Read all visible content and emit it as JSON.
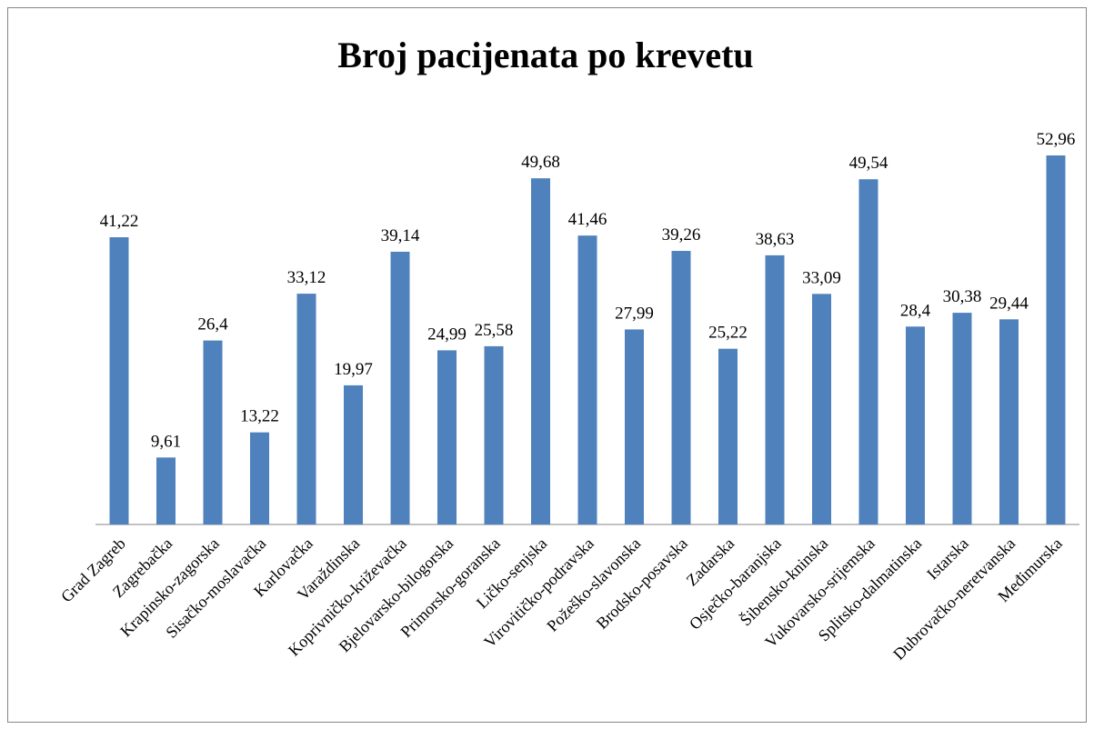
{
  "chart_data": {
    "type": "bar",
    "title": "Broj pacijenata po krevetu",
    "categories": [
      "Grad Zagreb",
      "Zagrebačka",
      "Krapinsko-zagorska",
      "Sisačko-moslavačka",
      "Karlovačka",
      "Varaždinska",
      "Koprivničko-križevačka",
      "Bjelovarsko-bilogorska",
      "Primorsko-goranska",
      "Ličko-senjska",
      "Virovitičko-podravska",
      "Požeško-slavonska",
      "Brodsko-posavska",
      "Zadarska",
      "Osječko-baranjska",
      "Šibensko-kninska",
      "Vukovarsko-srijemska",
      "Splitsko-dalmatinska",
      "Istarska",
      "Dubrovačko-neretvanska",
      "Međimurska"
    ],
    "values": [
      41.22,
      9.61,
      26.4,
      13.22,
      33.12,
      19.97,
      39.14,
      24.99,
      25.58,
      49.68,
      41.46,
      27.99,
      39.26,
      25.22,
      38.63,
      33.09,
      49.54,
      28.4,
      30.38,
      29.44,
      52.96
    ],
    "value_labels": [
      "41,22",
      "9,61",
      "26,4",
      "13,22",
      "33,12",
      "19,97",
      "39,14",
      "24,99",
      "25,58",
      "49,68",
      "41,46",
      "27,99",
      "39,26",
      "25,22",
      "38,63",
      "33,09",
      "49,54",
      "28,4",
      "30,38",
      "29,44",
      "52,96"
    ],
    "color": "#4f81bd"
  }
}
